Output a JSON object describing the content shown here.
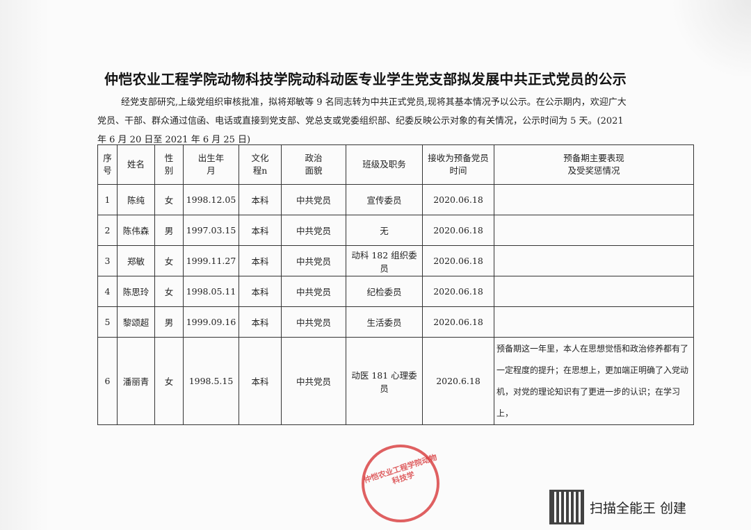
{
  "title": "仲恺农业工程学院动物科技学院动科动医专业学生党支部拟发展中共正式党员的公示",
  "intro": {
    "line1": "经党支部研究,上级党组织审核批准，拟将郑敏等 9 名同志转为中共正式党员,现将其基本情况予以公示。在公示期内，欢迎广大",
    "line2": "党员、干部、群众通过信函、电话或直接到党支部、党总支或党委组织部、纪委反映公示对象的有关情况，公示时间为 5 天。(2021",
    "line3": "年 6 月 20 日至 2021 年 6 月 25 日)"
  },
  "table": {
    "headers": [
      "序号",
      "姓名",
      "性别",
      "出生年月",
      "文化程n",
      "政治面貌",
      "班级及职务",
      "接收为预备党员时间",
      "预备期主要表现及受奖惩情况"
    ],
    "rows": [
      {
        "no": "1",
        "name": "陈纯",
        "gender": "女",
        "birth": "1998.12.05",
        "edu": "本科",
        "political": "中共党员",
        "role": "宣传委员",
        "date": "2020.06.18",
        "note": ""
      },
      {
        "no": "2",
        "name": "陈伟森",
        "gender": "男",
        "birth": "1997.03.15",
        "edu": "本科",
        "political": "中共党员",
        "role": "无",
        "date": "2020.06.18",
        "note": ""
      },
      {
        "no": "3",
        "name": "郑敏",
        "gender": "女",
        "birth": "1999.11.27",
        "edu": "本科",
        "political": "中共党员",
        "role": "动科 182 组织委员",
        "date": "2020.06.18",
        "note": ""
      },
      {
        "no": "4",
        "name": "陈思玲",
        "gender": "女",
        "birth": "1998.05.11",
        "edu": "本科",
        "political": "中共党员",
        "role": "纪检委员",
        "date": "2020.06.18",
        "note": ""
      },
      {
        "no": "5",
        "name": "黎颂超",
        "gender": "男",
        "birth": "1999.09.16",
        "edu": "本科",
        "political": "中共党员",
        "role": "生活委员",
        "date": "2020.06.18",
        "note": ""
      },
      {
        "no": "6",
        "name": "潘丽青",
        "gender": "女",
        "birth": "1998.5.15",
        "edu": "本科",
        "political": "中共党员",
        "role": "动医 181 心理委员",
        "date": "2020.6.18",
        "note": "预备期这一年里，本人在思想觉悟和政治修养都有了一定程度的提升；在思想上，更加端正明确了入党动机，对党的理论知识有了更进一步的认识；在学习上，"
      }
    ]
  },
  "stamp": {
    "text": "仲恺农业工程学院动物科技学",
    "color": "#d8393b"
  },
  "watermark": {
    "text": "扫描全能王 创建",
    "icon": "qr-code-icon"
  }
}
